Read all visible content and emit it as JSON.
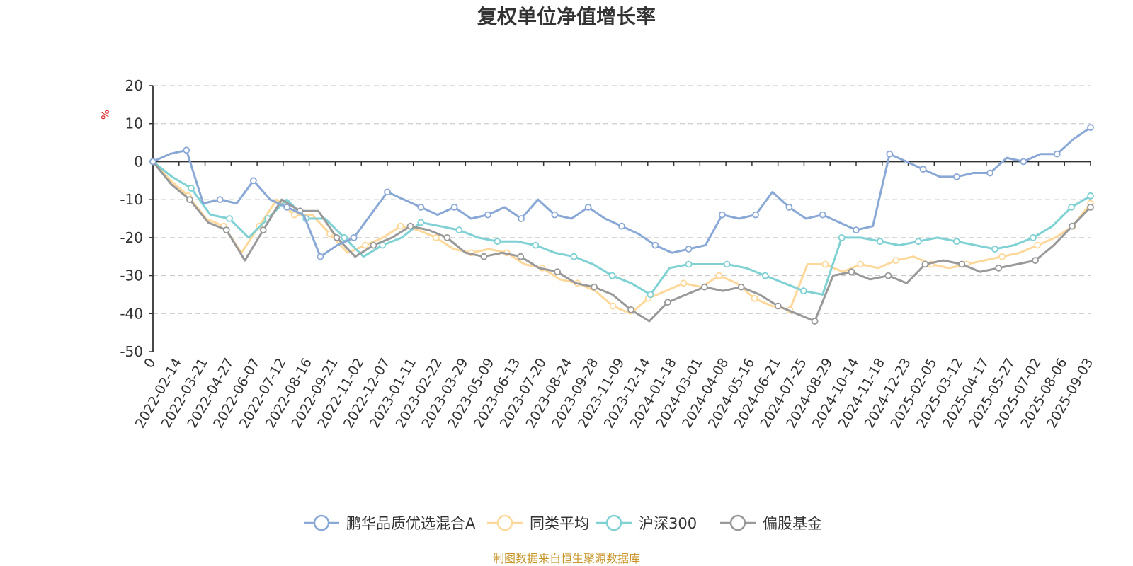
{
  "chart_data": {
    "type": "line",
    "title": "复权单位净值增长率",
    "ylabel": "%",
    "ylim": [
      -50,
      20
    ],
    "yticks": [
      20,
      10,
      0,
      -10,
      -20,
      -30,
      -40,
      -50
    ],
    "grid": true,
    "legend_position": "bottom",
    "x_tick_labels": [
      "0",
      "2022-02-14",
      "2022-03-21",
      "2022-04-27",
      "2022-06-07",
      "2022-07-12",
      "2022-08-16",
      "2022-09-21",
      "2022-11-02",
      "2022-12-07",
      "2023-01-11",
      "2023-02-22",
      "2023-03-29",
      "2023-05-09",
      "2023-06-13",
      "2023-07-20",
      "2023-08-24",
      "2023-09-28",
      "2023-11-09",
      "2023-12-14",
      "2024-01-18",
      "2024-03-01",
      "2024-04-08",
      "2024-05-16",
      "2024-06-21",
      "2024-07-25",
      "2024-08-29",
      "2024-10-14",
      "2024-11-18",
      "2024-12-23",
      "2025-02-05",
      "2025-03-12",
      "2025-04-17",
      "2025-05-27",
      "2025-07-02",
      "2025-08-06",
      "2025-09-03"
    ],
    "series": [
      {
        "name": "鹏华品质优选混合A",
        "color": "#8aa8d6",
        "values": [
          0,
          2,
          3,
          -11,
          -10,
          -11,
          -5,
          -10,
          -12,
          -14,
          -25,
          -22,
          -20,
          -14,
          -8,
          -10,
          -12,
          -14,
          -12,
          -15,
          -14,
          -12,
          -15,
          -10,
          -14,
          -15,
          -12,
          -15,
          -17,
          -19,
          -22,
          -24,
          -23,
          -22,
          -14,
          -15,
          -14,
          -8,
          -12,
          -15,
          -14,
          -16,
          -18,
          -17,
          2,
          0,
          -2,
          -4,
          -4,
          -3,
          -3,
          1,
          0,
          2,
          2,
          6,
          9
        ]
      },
      {
        "name": "同类平均",
        "color": "#fdd89a",
        "values": [
          0,
          -5,
          -9,
          -15,
          -17,
          -24,
          -17,
          -10,
          -14,
          -14,
          -19,
          -24,
          -22,
          -20,
          -17,
          -18,
          -20,
          -23,
          -24,
          -23,
          -24,
          -27,
          -28,
          -31,
          -32,
          -34,
          -38,
          -40,
          -36,
          -34,
          -32,
          -33,
          -30,
          -32,
          -36,
          -38,
          -39,
          -27,
          -27,
          -29,
          -27,
          -28,
          -26,
          -25,
          -27,
          -28,
          -27,
          -26,
          -25,
          -24,
          -22,
          -20,
          -17,
          -11
        ]
      },
      {
        "name": "沪深300",
        "color": "#7fd1d4",
        "values": [
          0,
          -4,
          -7,
          -14,
          -15,
          -20,
          -15,
          -10,
          -15,
          -15,
          -20,
          -25,
          -22,
          -20,
          -16,
          -17,
          -18,
          -20,
          -21,
          -21,
          -22,
          -24,
          -25,
          -27,
          -30,
          -32,
          -35,
          -28,
          -27,
          -27,
          -27,
          -28,
          -30,
          -32,
          -34,
          -35,
          -20,
          -20,
          -21,
          -22,
          -21,
          -20,
          -21,
          -22,
          -23,
          -22,
          -20,
          -17,
          -12,
          -9
        ]
      },
      {
        "name": "偏股基金",
        "color": "#999999",
        "values": [
          0,
          -6,
          -10,
          -16,
          -18,
          -26,
          -18,
          -10,
          -13,
          -13,
          -20,
          -25,
          -22,
          -20,
          -17,
          -18,
          -20,
          -24,
          -25,
          -24,
          -25,
          -28,
          -29,
          -32,
          -33,
          -35,
          -39,
          -42,
          -37,
          -35,
          -33,
          -34,
          -33,
          -35,
          -38,
          -40,
          -42,
          -30,
          -29,
          -31,
          -30,
          -32,
          -27,
          -26,
          -27,
          -29,
          -28,
          -27,
          -26,
          -22,
          -17,
          -12
        ]
      }
    ]
  },
  "legend": {
    "items": [
      "鹏华品质优选混合A",
      "同类平均",
      "沪深300",
      "偏股基金"
    ]
  },
  "source_text": "制图数据来自恒生聚源数据库"
}
